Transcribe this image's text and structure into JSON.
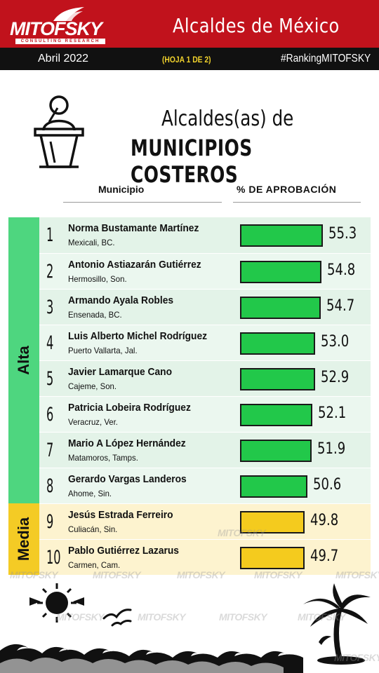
{
  "header": {
    "brand": "MITOFSKY",
    "brand_sub": "CONSULTING RESEARCH",
    "title": "Alcaldes de México",
    "date": "Abril 2022",
    "sheet": "(HOJA 1 DE 2)",
    "hashtag": "#RankingMITOFSKY"
  },
  "chart_data": {
    "type": "bar",
    "title_line1": "Alcaldes(as) de",
    "title_line2": "MUNICIPIOS COSTEROS",
    "col_municipio": "Municipio",
    "col_aprobacion": "% DE APROBACIÓN",
    "groups": [
      {
        "label": "Alta",
        "color": "#4ed67f",
        "bar_color": "#22c84a"
      },
      {
        "label": "Media",
        "color": "#f4cb25",
        "bar_color": "#f4cb1e"
      }
    ],
    "rows": [
      {
        "rank": "1",
        "name": "Norma Bustamante Martínez",
        "place": "Mexicali, BC.",
        "value": 55.3,
        "label": "55.3",
        "group": 0
      },
      {
        "rank": "2",
        "name": "Antonio Astiazarán Gutiérrez",
        "place": "Hermosillo, Son.",
        "value": 54.8,
        "label": "54.8",
        "group": 0
      },
      {
        "rank": "3",
        "name": "Armando Ayala Robles",
        "place": "Ensenada, BC.",
        "value": 54.7,
        "label": "54.7",
        "group": 0
      },
      {
        "rank": "4",
        "name": "Luis Alberto Michel Rodríguez",
        "place": "Puerto Vallarta, Jal.",
        "value": 53.0,
        "label": "53.0",
        "group": 0
      },
      {
        "rank": "5",
        "name": "Javier Lamarque Cano",
        "place": "Cajeme, Son.",
        "value": 52.9,
        "label": "52.9",
        "group": 0
      },
      {
        "rank": "6",
        "name": "Patricia Lobeira Rodríguez",
        "place": "Veracruz, Ver.",
        "value": 52.1,
        "label": "52.1",
        "group": 0
      },
      {
        "rank": "7",
        "name": "Mario A López Hernández",
        "place": "Matamoros, Tamps.",
        "value": 51.9,
        "label": "51.9",
        "group": 0
      },
      {
        "rank": "8",
        "name": "Gerardo Vargas Landeros",
        "place": "Ahome, Sin.",
        "value": 50.6,
        "label": "50.6",
        "group": 0
      },
      {
        "rank": "9",
        "name": "Jesús Estrada Ferreiro",
        "place": "Culiacán, Sin.",
        "value": 49.8,
        "label": "49.8",
        "group": 1
      },
      {
        "rank": "10",
        "name": "Pablo Gutiérrez Lazarus",
        "place": "Carmen, Cam.",
        "value": 49.7,
        "label": "49.7",
        "group": 1
      }
    ]
  },
  "watermark": "MITOFSKY",
  "icons": [
    "podium-speaker-icon",
    "sun-icon",
    "birds-icon",
    "palm-tree-icon",
    "waves-icon"
  ]
}
